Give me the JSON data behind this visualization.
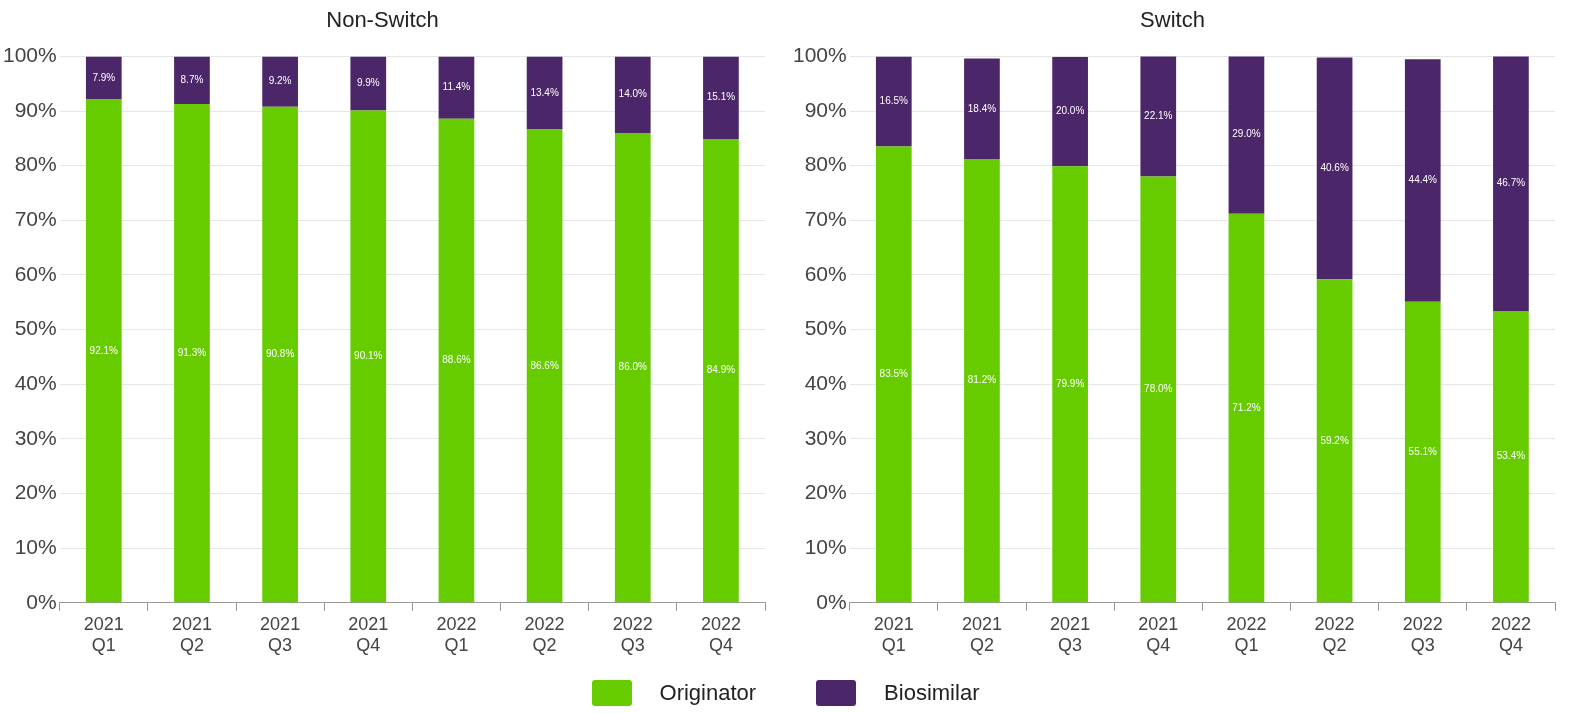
{
  "chart_data": [
    {
      "type": "bar",
      "title": "Non-Switch",
      "stacked": true,
      "categories": [
        "2021 Q1",
        "2021 Q2",
        "2021 Q3",
        "2021 Q4",
        "2022 Q1",
        "2022 Q2",
        "2022 Q3",
        "2022 Q4"
      ],
      "ylim": [
        0,
        100
      ],
      "yticks": [
        {
          "value": 0,
          "label": "0%"
        },
        {
          "value": 10,
          "label": "10%"
        },
        {
          "value": 20,
          "label": "20%"
        },
        {
          "value": 30,
          "label": "30%"
        },
        {
          "value": 40,
          "label": "40%"
        },
        {
          "value": 50,
          "label": "50%"
        },
        {
          "value": 60,
          "label": "60%"
        },
        {
          "value": 70,
          "label": "70%"
        },
        {
          "value": 80,
          "label": "80%"
        },
        {
          "value": 90,
          "label": "90%"
        },
        {
          "value": 100,
          "label": "100%"
        }
      ],
      "grid": "y",
      "legend": "bottom",
      "series": [
        {
          "name": "Originator",
          "color": "#66cc00",
          "values": [
            92.1,
            91.3,
            90.8,
            90.1,
            88.6,
            86.6,
            86.0,
            84.9
          ],
          "value_labels": [
            "92.1%",
            "91.3%",
            "90.8%",
            "90.1%",
            "88.6%",
            "86.6%",
            "86.0%",
            "84.9%"
          ]
        },
        {
          "name": "Biosimilar",
          "color": "#4b2669",
          "values": [
            7.9,
            8.7,
            9.2,
            9.9,
            11.4,
            13.4,
            14.0,
            15.1
          ],
          "value_labels": [
            "7.9%",
            "8.7%",
            "9.2%",
            "9.9%",
            "11.4%",
            "13.4%",
            "14.0%",
            "15.1%"
          ]
        }
      ]
    },
    {
      "type": "bar",
      "title": "Switch",
      "stacked": true,
      "categories": [
        "2021 Q1",
        "2021 Q2",
        "2021 Q3",
        "2021 Q4",
        "2022 Q1",
        "2022 Q2",
        "2022 Q3",
        "2022 Q4"
      ],
      "ylim": [
        0,
        100
      ],
      "yticks": [
        {
          "value": 0,
          "label": "0%"
        },
        {
          "value": 10,
          "label": "10%"
        },
        {
          "value": 20,
          "label": "20%"
        },
        {
          "value": 30,
          "label": "30%"
        },
        {
          "value": 40,
          "label": "40%"
        },
        {
          "value": 50,
          "label": "50%"
        },
        {
          "value": 60,
          "label": "60%"
        },
        {
          "value": 70,
          "label": "70%"
        },
        {
          "value": 80,
          "label": "80%"
        },
        {
          "value": 90,
          "label": "90%"
        },
        {
          "value": 100,
          "label": "100%"
        }
      ],
      "grid": "y",
      "series": [
        {
          "color": "#66cc00",
          "values": [
            83.5,
            81.2,
            79.9,
            78.0,
            71.2,
            59.2,
            55.1,
            53.4
          ],
          "value_labels": [
            "83.5%",
            "81.2%",
            "79.9%",
            "78.0%",
            "71.2%",
            "59.2%",
            "55.1%",
            "53.4%"
          ]
        },
        {
          "color": "#4b2669",
          "values": [
            16.5,
            18.4,
            20.0,
            22.1,
            29.0,
            40.6,
            44.4,
            46.7
          ],
          "value_labels": [
            "16.5%",
            "18.4%",
            "20.0%",
            "22.1%",
            "29.0%",
            "40.6%",
            "44.4%",
            "46.7%"
          ]
        }
      ]
    }
  ]
}
